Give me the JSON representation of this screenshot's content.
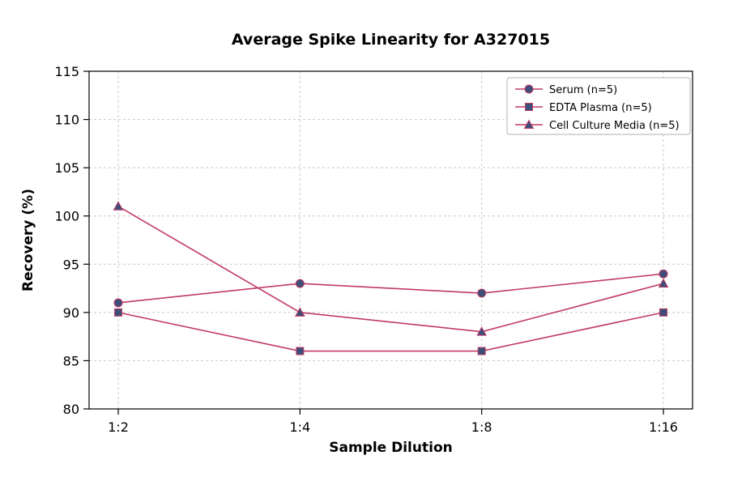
{
  "chart_data": {
    "type": "line",
    "title": "Average Spike Linearity for A327015",
    "xlabel": "Sample Dilution",
    "ylabel": "Recovery (%)",
    "categories": [
      "1:2",
      "1:4",
      "1:8",
      "1:16"
    ],
    "series": [
      {
        "name": "Serum (n=5)",
        "marker": "circle",
        "values": [
          91,
          93,
          92,
          94
        ]
      },
      {
        "name": "EDTA Plasma (n=5)",
        "marker": "square",
        "values": [
          90,
          86,
          86,
          90
        ]
      },
      {
        "name": "Cell Culture Media (n=5)",
        "marker": "triangle",
        "values": [
          101,
          90,
          88,
          93
        ]
      }
    ],
    "ylim": [
      80,
      115
    ],
    "yticks": [
      80,
      85,
      90,
      95,
      100,
      105,
      110,
      115
    ],
    "grid": true,
    "legend_position": "top-right",
    "colors": {
      "line": "#c13a66",
      "marker_fill": "#3d4f78",
      "grid": "#c8c8c8",
      "axis": "#000000",
      "text": "#000000",
      "legend_border": "#b0b0b0",
      "background": "#ffffff"
    }
  }
}
